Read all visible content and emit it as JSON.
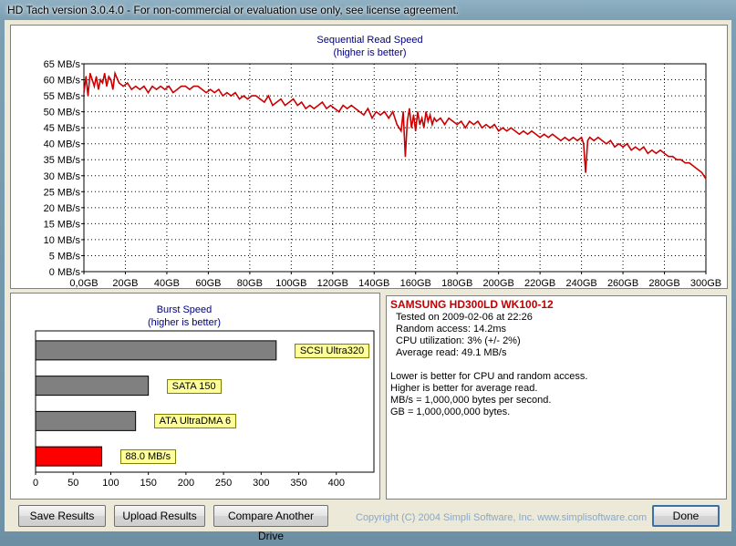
{
  "window": {
    "title": "HD Tach version 3.0.4.0  - For non-commercial or evaluation use only, see license agreement."
  },
  "seq_chart": {
    "title": "Sequential Read Speed",
    "subtitle": "(higher is better)"
  },
  "burst_chart": {
    "title": "Burst Speed",
    "subtitle": "(higher is better)"
  },
  "info": {
    "drive": "SAMSUNG HD300LD WK100-12",
    "tested": "Tested on 2009-02-06 at 22:26",
    "random_access": "Random access: 14.2ms",
    "cpu": "CPU utilization: 3% (+/- 2%)",
    "average_read": "Average read: 49.1 MB/s",
    "notes": [
      "Lower is better for CPU and random access.",
      "Higher is better for average read.",
      "MB/s = 1,000,000 bytes per second.",
      "GB = 1,000,000,000 bytes."
    ]
  },
  "buttons": {
    "save": "Save Results",
    "upload": "Upload Results",
    "compare": "Compare Another Drive",
    "done": "Done"
  },
  "copyright": "Copyright (C) 2004 Simpli Software, Inc. www.simplisoftware.com",
  "colors": {
    "series": "#cc0000",
    "reference_bar": "#808080",
    "drive_bar": "#ff0000",
    "label_bg": "#ffff99"
  },
  "chart_data": [
    {
      "type": "line",
      "title": "Sequential Read Speed",
      "subtitle": "(higher is better)",
      "ylabel": "MB/s",
      "xlabel": "GB",
      "xlim": [
        0,
        300
      ],
      "ylim": [
        0,
        65
      ],
      "x_ticks": [
        "0,0GB",
        "20GB",
        "40GB",
        "60GB",
        "80GB",
        "100GB",
        "120GB",
        "140GB",
        "160GB",
        "180GB",
        "200GB",
        "220GB",
        "240GB",
        "260GB",
        "280GB",
        "300GB"
      ],
      "y_ticks": [
        "0 MB/s",
        "5 MB/s",
        "10 MB/s",
        "15 MB/s",
        "20 MB/s",
        "25 MB/s",
        "30 MB/s",
        "35 MB/s",
        "40 MB/s",
        "45 MB/s",
        "50 MB/s",
        "55 MB/s",
        "60 MB/s",
        "65 MB/s"
      ],
      "grid": true,
      "series": [
        {
          "x": [
            0,
            1,
            2,
            3,
            4,
            5,
            6,
            7,
            8,
            9,
            10,
            11,
            12,
            13,
            14,
            15,
            17,
            19,
            21,
            23,
            25,
            27,
            29,
            31,
            33,
            35,
            37,
            39,
            41,
            43,
            45,
            47,
            49,
            51,
            53,
            55,
            57,
            59,
            61,
            63,
            65,
            67,
            69,
            71,
            73,
            75,
            77,
            79,
            81,
            83,
            85,
            87,
            89,
            91,
            93,
            95,
            97,
            99,
            101,
            103,
            105,
            107,
            109,
            111,
            113,
            115,
            117,
            119,
            121,
            123,
            125,
            127,
            129,
            131,
            133,
            135,
            137,
            139,
            141,
            143,
            145,
            147,
            149,
            151,
            153,
            154,
            155,
            156,
            157,
            158,
            159,
            160,
            161,
            162,
            163,
            164,
            165,
            166,
            167,
            168,
            169,
            170,
            172,
            174,
            176,
            178,
            180,
            182,
            184,
            186,
            188,
            190,
            192,
            194,
            196,
            198,
            200,
            202,
            204,
            206,
            208,
            210,
            212,
            214,
            216,
            218,
            220,
            222,
            224,
            226,
            228,
            230,
            232,
            234,
            236,
            238,
            240,
            241,
            242,
            243,
            244,
            246,
            248,
            250,
            252,
            254,
            256,
            258,
            260,
            262,
            264,
            266,
            268,
            270,
            272,
            274,
            276,
            278,
            280,
            282,
            284,
            286,
            288,
            290,
            292,
            294,
            296,
            298,
            300
          ],
          "y": [
            56,
            61,
            55,
            62,
            60,
            58,
            61,
            57,
            60,
            59,
            62,
            58,
            61,
            60,
            57,
            62,
            59,
            58,
            59,
            57,
            58,
            57,
            58,
            56,
            58,
            57,
            58,
            57,
            58,
            56,
            57,
            58,
            58,
            57,
            58,
            58,
            57,
            56,
            57,
            56,
            57,
            55,
            56,
            55,
            56,
            54,
            55,
            54,
            55,
            55,
            54,
            53,
            55,
            52,
            53,
            54,
            52,
            53,
            54,
            52,
            53,
            51,
            52,
            51,
            52,
            53,
            51,
            52,
            51,
            50,
            52,
            51,
            52,
            51,
            50,
            49,
            51,
            48,
            50,
            49,
            50,
            48,
            50,
            46,
            44,
            50,
            36,
            47,
            51,
            45,
            49,
            44,
            50,
            46,
            48,
            45,
            50,
            47,
            49,
            46,
            48,
            47,
            48,
            46,
            48,
            47,
            46,
            47,
            45,
            47,
            46,
            47,
            45,
            46,
            45,
            46,
            44,
            45,
            44,
            45,
            44,
            43,
            44,
            43,
            44,
            43,
            42,
            43,
            42,
            43,
            42,
            41,
            42,
            41,
            42,
            41,
            42,
            40,
            31,
            41,
            42,
            41,
            42,
            41,
            40,
            41,
            39,
            40,
            39,
            40,
            38,
            39,
            38,
            39,
            37,
            38,
            37,
            38,
            37,
            36,
            36,
            35,
            35,
            34,
            34,
            33,
            32,
            31,
            29
          ]
        }
      ]
    },
    {
      "type": "bar",
      "title": "Burst Speed",
      "subtitle": "(higher is better)",
      "orientation": "horizontal",
      "xlim": [
        0,
        450
      ],
      "x_ticks": [
        "0",
        "50",
        "100",
        "150",
        "200",
        "250",
        "300",
        "350",
        "400"
      ],
      "categories": [
        "SCSI Ultra320",
        "SATA 150",
        "ATA UltraDMA 6",
        "88.0 MB/s"
      ],
      "values": [
        320,
        150,
        133,
        88.0
      ]
    }
  ]
}
